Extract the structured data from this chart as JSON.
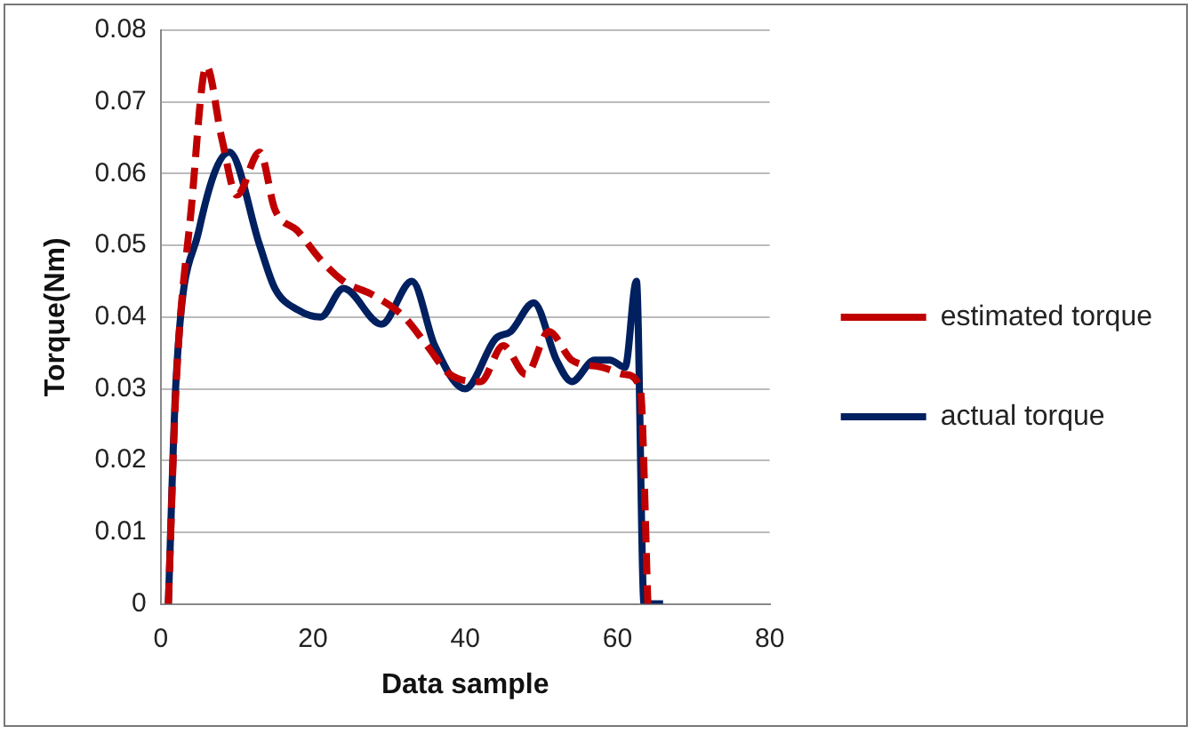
{
  "chart_data": {
    "type": "line",
    "xlabel": "Data sample",
    "ylabel": "Torque(Nm)",
    "xlim": [
      0,
      80
    ],
    "xticks": [
      0,
      20,
      40,
      60,
      80
    ],
    "ylim": [
      0,
      0.08
    ],
    "yticks": [
      0,
      0.01,
      0.02,
      0.03,
      0.04,
      0.05,
      0.06,
      0.07,
      0.08
    ],
    "grid": "y",
    "legend": "right",
    "marker": "none",
    "series": [
      {
        "name": "estimated torque",
        "color": "#c00000",
        "line_style": "dashed",
        "x": [
          1,
          2,
          4,
          6,
          8,
          10,
          13,
          15,
          18,
          21,
          24,
          28,
          32,
          35,
          38,
          42,
          45,
          48,
          51,
          54,
          58,
          61,
          63,
          64
        ],
        "values": [
          0,
          0.03,
          0.055,
          0.075,
          0.065,
          0.057,
          0.063,
          0.055,
          0.052,
          0.048,
          0.045,
          0.043,
          0.04,
          0.036,
          0.032,
          0.031,
          0.036,
          0.032,
          0.038,
          0.034,
          0.033,
          0.032,
          0.03,
          0
        ]
      },
      {
        "name": "actual torque",
        "color": "#002060",
        "line_style": "solid",
        "x": [
          1,
          2,
          5,
          9,
          13,
          15,
          18,
          21,
          24,
          29,
          33,
          36,
          40,
          44,
          46,
          49,
          52,
          54,
          57,
          59,
          61,
          62.5,
          63.5,
          66
        ],
        "values": [
          0,
          0.031,
          0.052,
          0.063,
          0.05,
          0.044,
          0.041,
          0.04,
          0.044,
          0.039,
          0.045,
          0.036,
          0.03,
          0.037,
          0.038,
          0.042,
          0.034,
          0.031,
          0.034,
          0.034,
          0.033,
          0.045,
          0,
          0
        ]
      }
    ]
  }
}
